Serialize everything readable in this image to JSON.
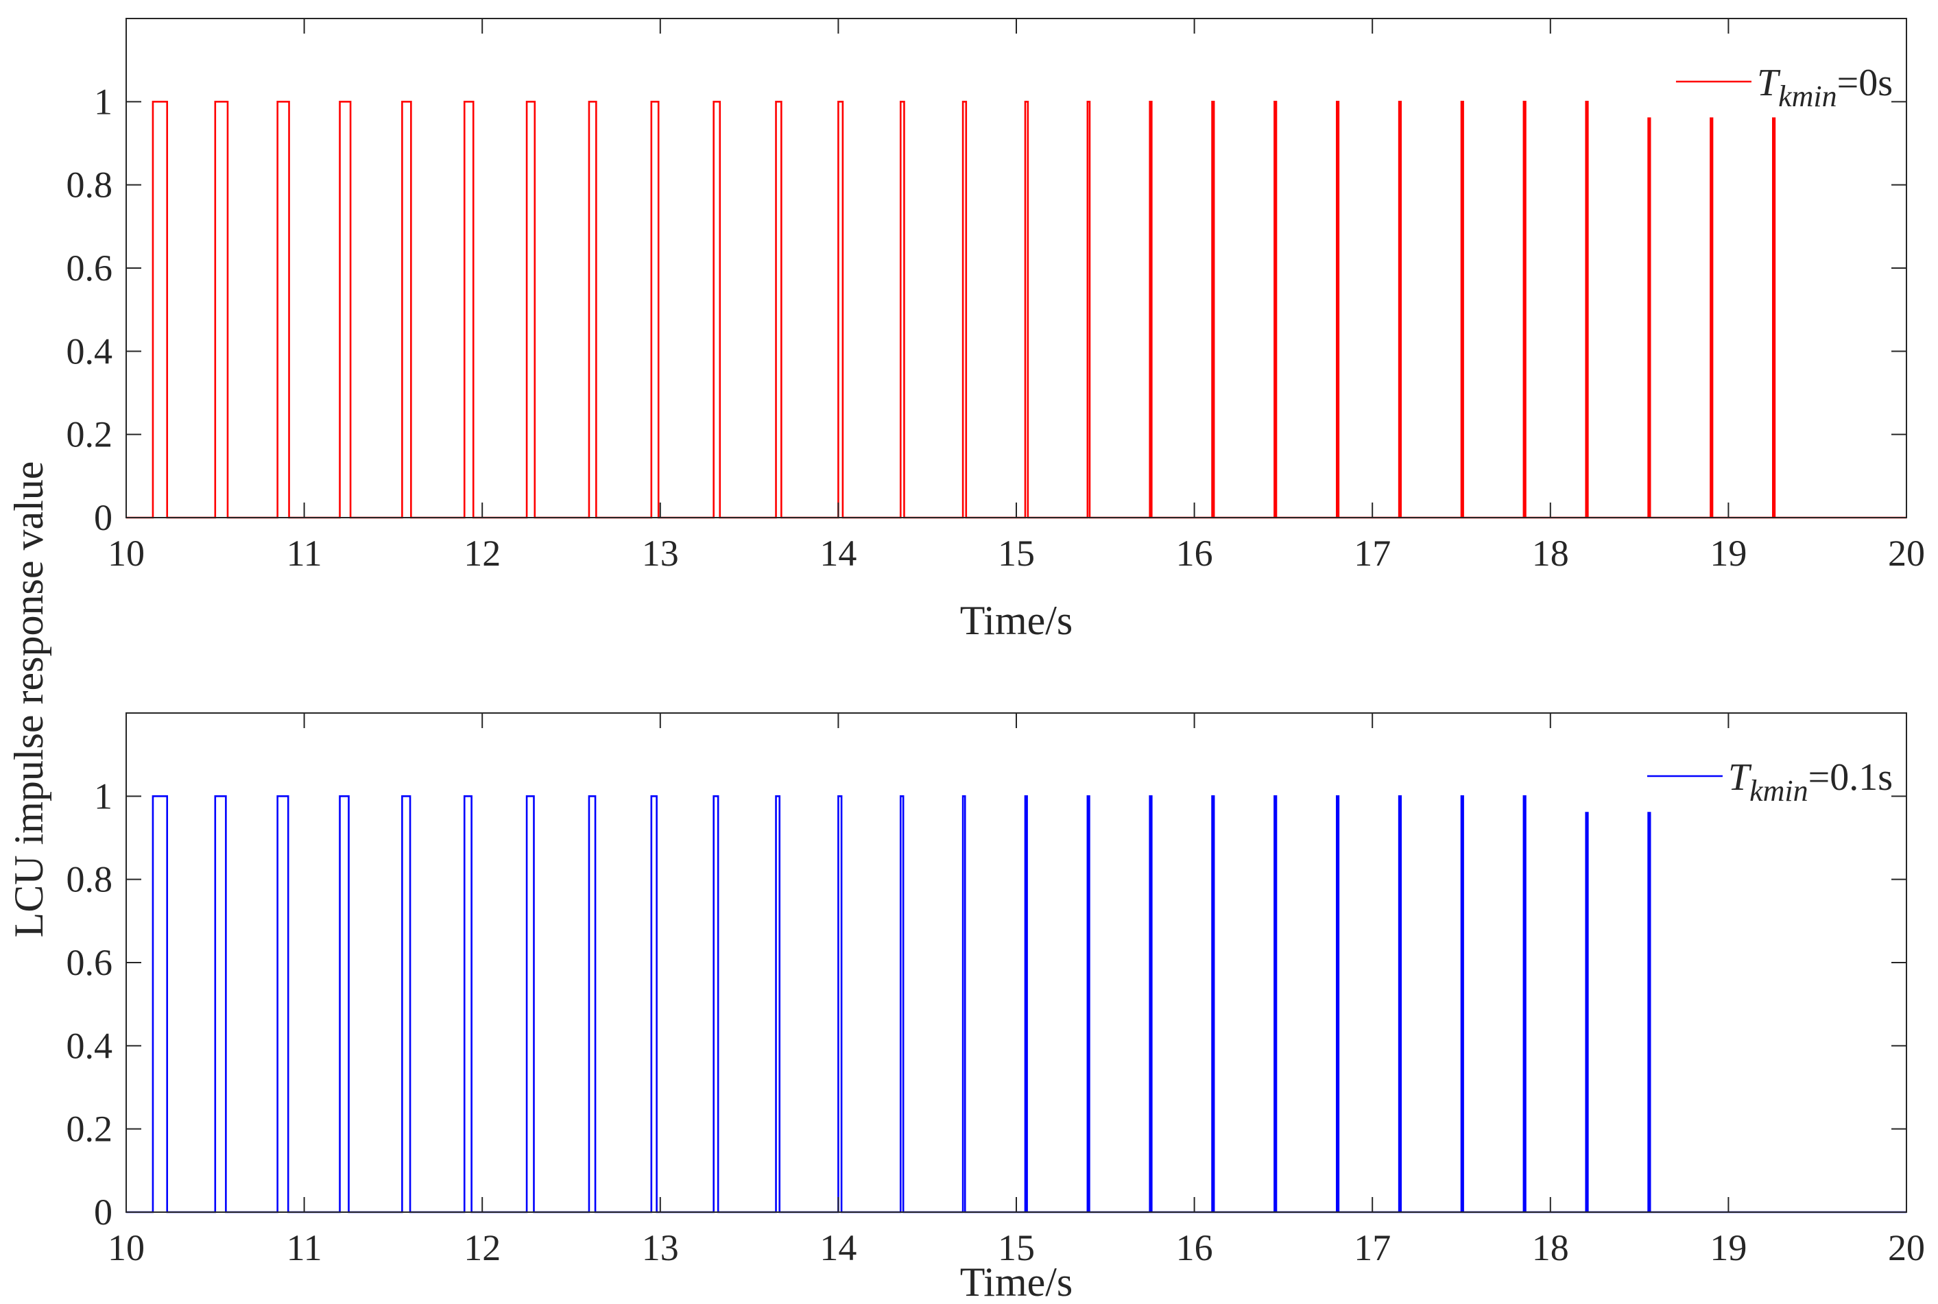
{
  "figure": {
    "shared_ylabel": "LCU impulse response value"
  },
  "chart_data": [
    {
      "type": "line",
      "xlabel": "Time/s",
      "ylabel": "",
      "xlim": [
        10,
        20
      ],
      "ylim": [
        0,
        1.2
      ],
      "xticks": [
        10,
        11,
        12,
        13,
        14,
        15,
        16,
        17,
        18,
        19,
        20
      ],
      "yticks": [
        0,
        0.2,
        0.4,
        0.6,
        0.8,
        1
      ],
      "ytick_labels": [
        "0",
        "0.2",
        "0.4",
        "0.6",
        "0.8",
        "1"
      ],
      "grid": false,
      "legend_position": "top-right",
      "series": [
        {
          "legend": {
            "symbol": "T",
            "subscript": "kmin",
            "suffix": "=0s"
          },
          "color": "#ff0000",
          "pulse_starts": [
            10.15,
            10.5,
            10.85,
            11.2,
            11.55,
            11.9,
            12.25,
            12.6,
            12.95,
            13.3,
            13.65,
            14.0,
            14.35,
            14.7,
            15.05,
            15.4,
            15.75,
            16.1,
            16.45,
            16.8,
            17.15,
            17.5,
            17.85,
            18.2,
            18.55,
            18.9,
            19.25
          ],
          "pulse_widths": [
            0.08,
            0.07,
            0.065,
            0.06,
            0.05,
            0.05,
            0.045,
            0.04,
            0.04,
            0.035,
            0.03,
            0.025,
            0.02,
            0.018,
            0.015,
            0.012,
            0.01,
            0.01,
            0.01,
            0.01,
            0.01,
            0.01,
            0.01,
            0.01,
            0.01,
            0.01,
            0.01
          ],
          "pulse_heights": [
            1,
            1,
            1,
            1,
            1,
            1,
            1,
            1,
            1,
            1,
            1,
            1,
            1,
            1,
            1,
            1,
            1,
            1,
            1,
            1,
            1,
            1,
            1,
            1,
            0.96,
            0.96,
            0.96
          ]
        }
      ]
    },
    {
      "type": "line",
      "xlabel": "Time/s",
      "ylabel": "",
      "xlim": [
        10,
        20
      ],
      "ylim": [
        0,
        1.2
      ],
      "xticks": [
        10,
        11,
        12,
        13,
        14,
        15,
        16,
        17,
        18,
        19,
        20
      ],
      "yticks": [
        0,
        0.2,
        0.4,
        0.6,
        0.8,
        1
      ],
      "ytick_labels": [
        "0",
        "0.2",
        "0.4",
        "0.6",
        "0.8",
        "1"
      ],
      "grid": false,
      "legend_position": "top-right",
      "series": [
        {
          "legend": {
            "symbol": "T",
            "subscript": "kmin",
            "suffix": "=0.1s"
          },
          "color": "#0000ff",
          "pulse_starts": [
            10.15,
            10.5,
            10.85,
            11.2,
            11.55,
            11.9,
            12.25,
            12.6,
            12.95,
            13.3,
            13.65,
            14.0,
            14.35,
            14.7,
            15.05,
            15.4,
            15.75,
            16.1,
            16.45,
            16.8,
            17.15,
            17.5,
            17.85,
            18.2,
            18.55
          ],
          "pulse_widths": [
            0.08,
            0.06,
            0.06,
            0.05,
            0.045,
            0.04,
            0.04,
            0.035,
            0.03,
            0.025,
            0.02,
            0.018,
            0.015,
            0.012,
            0.01,
            0.01,
            0.01,
            0.01,
            0.01,
            0.01,
            0.01,
            0.01,
            0.01,
            0.01,
            0.01
          ],
          "pulse_heights": [
            1,
            1,
            1,
            1,
            1,
            1,
            1,
            1,
            1,
            1,
            1,
            1,
            1,
            1,
            1,
            1,
            1,
            1,
            1,
            1,
            1,
            1,
            1,
            0.96,
            0.96
          ]
        }
      ]
    }
  ]
}
